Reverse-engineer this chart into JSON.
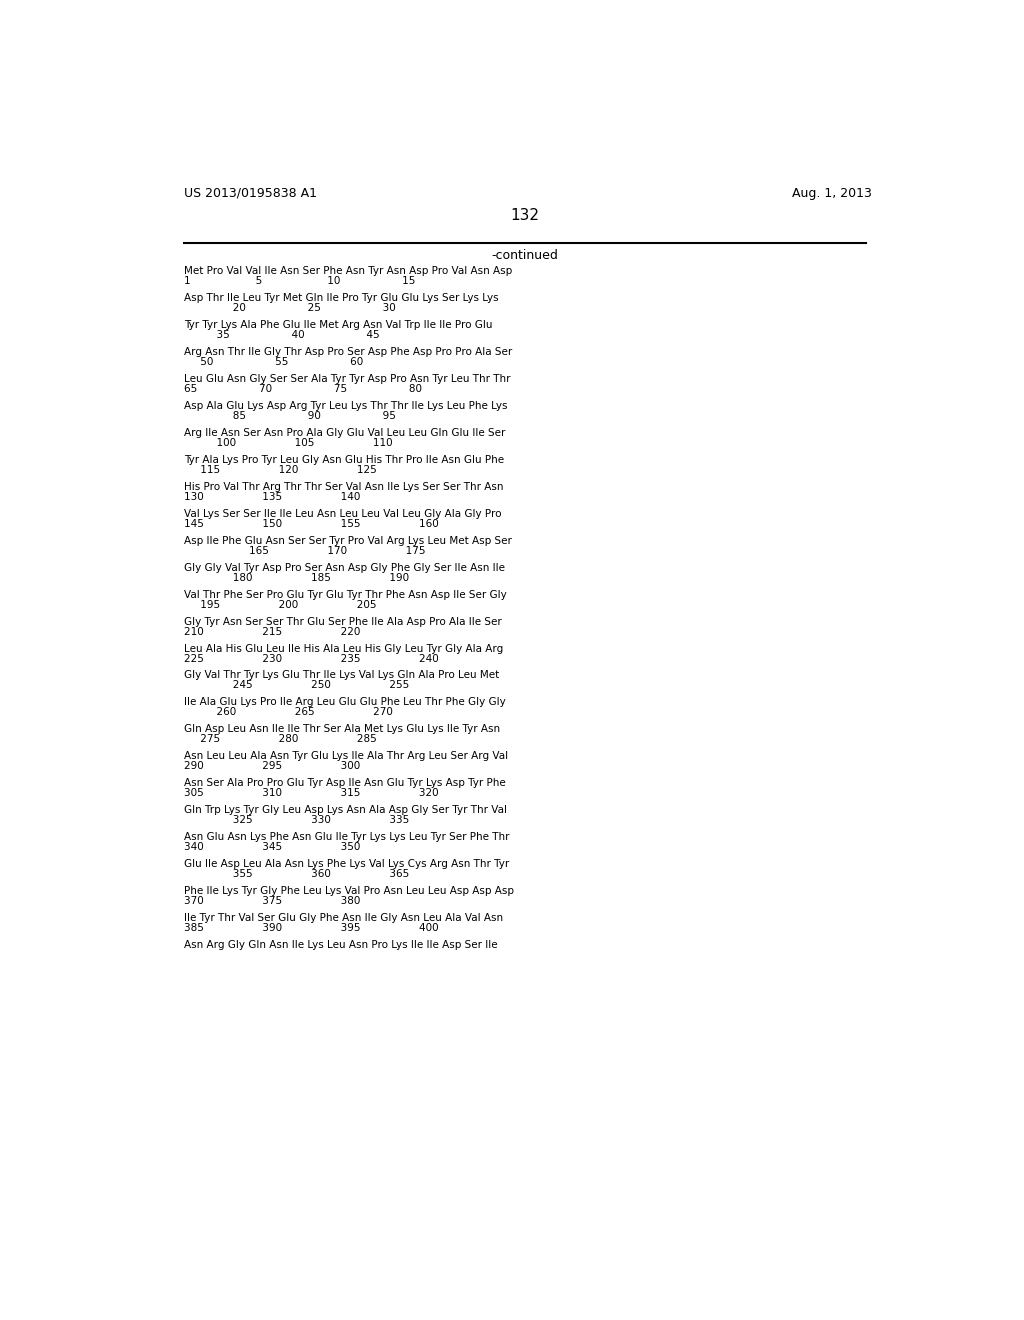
{
  "patent_number": "US 2013/0195838 A1",
  "date": "Aug. 1, 2013",
  "page_number": "132",
  "continued_text": "-continued",
  "background_color": "#ffffff",
  "text_color": "#000000",
  "sequence_blocks": [
    {
      "seq": "Met Pro Val Val Ile Asn Ser Phe Asn Tyr Asn Asp Pro Val Asn Asp",
      "num": "1                    5                    10                   15"
    },
    {
      "seq": "Asp Thr Ile Leu Tyr Met Gln Ile Pro Tyr Glu Glu Lys Ser Lys Lys",
      "num": "               20                   25                   30"
    },
    {
      "seq": "Tyr Tyr Lys Ala Phe Glu Ile Met Arg Asn Val Trp Ile Ile Pro Glu",
      "num": "          35                   40                   45"
    },
    {
      "seq": "Arg Asn Thr Ile Gly Thr Asp Pro Ser Asp Phe Asp Pro Pro Ala Ser",
      "num": "     50                   55                   60"
    },
    {
      "seq": "Leu Glu Asn Gly Ser Ser Ala Tyr Tyr Asp Pro Asn Tyr Leu Thr Thr",
      "num": "65                   70                   75                   80"
    },
    {
      "seq": "Asp Ala Glu Lys Asp Arg Tyr Leu Lys Thr Thr Ile Lys Leu Phe Lys",
      "num": "               85                   90                   95"
    },
    {
      "seq": "Arg Ile Asn Ser Asn Pro Ala Gly Glu Val Leu Leu Gln Glu Ile Ser",
      "num": "          100                  105                  110"
    },
    {
      "seq": "Tyr Ala Lys Pro Tyr Leu Gly Asn Glu His Thr Pro Ile Asn Glu Phe",
      "num": "     115                  120                  125"
    },
    {
      "seq": "His Pro Val Thr Arg Thr Thr Ser Val Asn Ile Lys Ser Ser Thr Asn",
      "num": "130                  135                  140"
    },
    {
      "seq": "Val Lys Ser Ser Ile Ile Leu Asn Leu Leu Val Leu Gly Ala Gly Pro",
      "num": "145                  150                  155                  160"
    },
    {
      "seq": "Asp Ile Phe Glu Asn Ser Ser Tyr Pro Val Arg Lys Leu Met Asp Ser",
      "num": "                    165                  170                  175"
    },
    {
      "seq": "Gly Gly Val Tyr Asp Pro Ser Asn Asp Gly Phe Gly Ser Ile Asn Ile",
      "num": "               180                  185                  190"
    },
    {
      "seq": "Val Thr Phe Ser Pro Glu Tyr Glu Tyr Thr Phe Asn Asp Ile Ser Gly",
      "num": "     195                  200                  205"
    },
    {
      "seq": "Gly Tyr Asn Ser Ser Thr Glu Ser Phe Ile Ala Asp Pro Ala Ile Ser",
      "num": "210                  215                  220"
    },
    {
      "seq": "Leu Ala His Glu Leu Ile His Ala Leu His Gly Leu Tyr Gly Ala Arg",
      "num": "225                  230                  235                  240"
    },
    {
      "seq": "Gly Val Thr Tyr Lys Glu Thr Ile Lys Val Lys Gln Ala Pro Leu Met",
      "num": "               245                  250                  255"
    },
    {
      "seq": "Ile Ala Glu Lys Pro Ile Arg Leu Glu Glu Phe Leu Thr Phe Gly Gly",
      "num": "          260                  265                  270"
    },
    {
      "seq": "Gln Asp Leu Asn Ile Ile Thr Ser Ala Met Lys Glu Lys Ile Tyr Asn",
      "num": "     275                  280                  285"
    },
    {
      "seq": "Asn Leu Leu Ala Asn Tyr Glu Lys Ile Ala Thr Arg Leu Ser Arg Val",
      "num": "290                  295                  300"
    },
    {
      "seq": "Asn Ser Ala Pro Pro Glu Tyr Asp Ile Asn Glu Tyr Lys Asp Tyr Phe",
      "num": "305                  310                  315                  320"
    },
    {
      "seq": "Gln Trp Lys Tyr Gly Leu Asp Lys Asn Ala Asp Gly Ser Tyr Thr Val",
      "num": "               325                  330                  335"
    },
    {
      "seq": "Asn Glu Asn Lys Phe Asn Glu Ile Tyr Lys Lys Leu Tyr Ser Phe Thr",
      "num": "340                  345                  350"
    },
    {
      "seq": "Glu Ile Asp Leu Ala Asn Lys Phe Lys Val Lys Cys Arg Asn Thr Tyr",
      "num": "               355                  360                  365"
    },
    {
      "seq": "Phe Ile Lys Tyr Gly Phe Leu Lys Val Pro Asn Leu Leu Asp Asp Asp",
      "num": "370                  375                  380"
    },
    {
      "seq": "Ile Tyr Thr Val Ser Glu Gly Phe Asn Ile Gly Asn Leu Ala Val Asn",
      "num": "385                  390                  395                  400"
    },
    {
      "seq": "Asn Arg Gly Gln Asn Ile Lys Leu Asn Pro Lys Ile Ile Asp Ser Ile",
      "num": ""
    }
  ]
}
